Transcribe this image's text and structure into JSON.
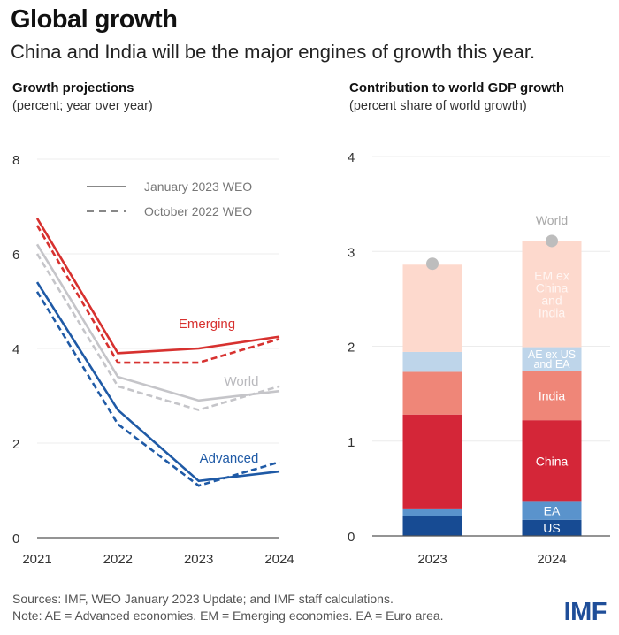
{
  "header": {
    "title": "Global growth",
    "subtitle": "China and India will be the major engines of growth this year."
  },
  "footer": {
    "sources": "Sources: IMF, WEO January 2023 Update; and IMF staff calculations.",
    "note": "Note: AE = Advanced economies.  EM = Emerging economies. EA = Euro area.",
    "logo": "IMF"
  },
  "chart_data": [
    {
      "type": "line",
      "title": "Growth projections",
      "subtitle": "(percent; year over year)",
      "x": [
        "2021",
        "2022",
        "2023",
        "2024"
      ],
      "ylim": [
        0,
        8
      ],
      "yticks": [
        "0",
        "2",
        "4",
        "6",
        "8"
      ],
      "grid": true,
      "legend": {
        "position": "top-right",
        "entries": [
          {
            "label": "January 2023 WEO",
            "style": "solid"
          },
          {
            "label": "October 2022 WEO",
            "style": "dashed"
          }
        ]
      },
      "series": [
        {
          "name": "Emerging",
          "edition": "January 2023 WEO",
          "color": "#d7312f",
          "values": [
            6.75,
            3.9,
            4.0,
            4.25
          ]
        },
        {
          "name": "Emerging",
          "edition": "October 2022 WEO",
          "color": "#d7312f",
          "values": [
            6.6,
            3.7,
            3.7,
            4.2
          ]
        },
        {
          "name": "World",
          "edition": "January 2023 WEO",
          "color": "#c5c5c9",
          "values": [
            6.2,
            3.4,
            2.9,
            3.1
          ]
        },
        {
          "name": "World",
          "edition": "October 2022 WEO",
          "color": "#c5c5c9",
          "values": [
            6.0,
            3.2,
            2.7,
            3.2
          ]
        },
        {
          "name": "Advanced",
          "edition": "January 2023 WEO",
          "color": "#1f5aa6",
          "values": [
            5.4,
            2.7,
            1.2,
            1.4
          ]
        },
        {
          "name": "Advanced",
          "edition": "October 2022 WEO",
          "color": "#1f5aa6",
          "values": [
            5.2,
            2.4,
            1.1,
            1.6
          ]
        }
      ],
      "annotations": [
        {
          "text": "Emerging",
          "color": "#d7312f"
        },
        {
          "text": "World",
          "color": "#b9b9bd"
        },
        {
          "text": "Advanced",
          "color": "#1f5aa6"
        }
      ]
    },
    {
      "type": "bar",
      "stacked": true,
      "title": "Contribution to world GDP growth",
      "subtitle": "(percent share of world growth)",
      "categories": [
        "2023",
        "2024"
      ],
      "ylim": [
        0,
        4
      ],
      "yticks": [
        "0",
        "1",
        "2",
        "3",
        "4"
      ],
      "grid": true,
      "series": [
        {
          "name": "US",
          "color": "#174b93",
          "values": [
            0.21,
            0.17
          ]
        },
        {
          "name": "EA",
          "color": "#5a93cc",
          "values": [
            0.08,
            0.19
          ]
        },
        {
          "name": "China",
          "color": "#d42638",
          "values": [
            0.99,
            0.86
          ]
        },
        {
          "name": "India",
          "color": "#ef8678",
          "values": [
            0.45,
            0.52
          ]
        },
        {
          "name": "AE ex US and EA",
          "color": "#bed5ea",
          "values": [
            0.21,
            0.25
          ]
        },
        {
          "name": "EM ex China and India",
          "color": "#fdd9cd",
          "values": [
            0.92,
            1.12
          ]
        }
      ],
      "world": {
        "name": "World",
        "color": "#bdbdbd",
        "values": [
          2.87,
          3.11
        ]
      },
      "segment_labels": [
        "US",
        "EA",
        "China",
        "India",
        "AE ex US\nand EA",
        "EM ex\nChina\nand\nIndia"
      ]
    }
  ]
}
